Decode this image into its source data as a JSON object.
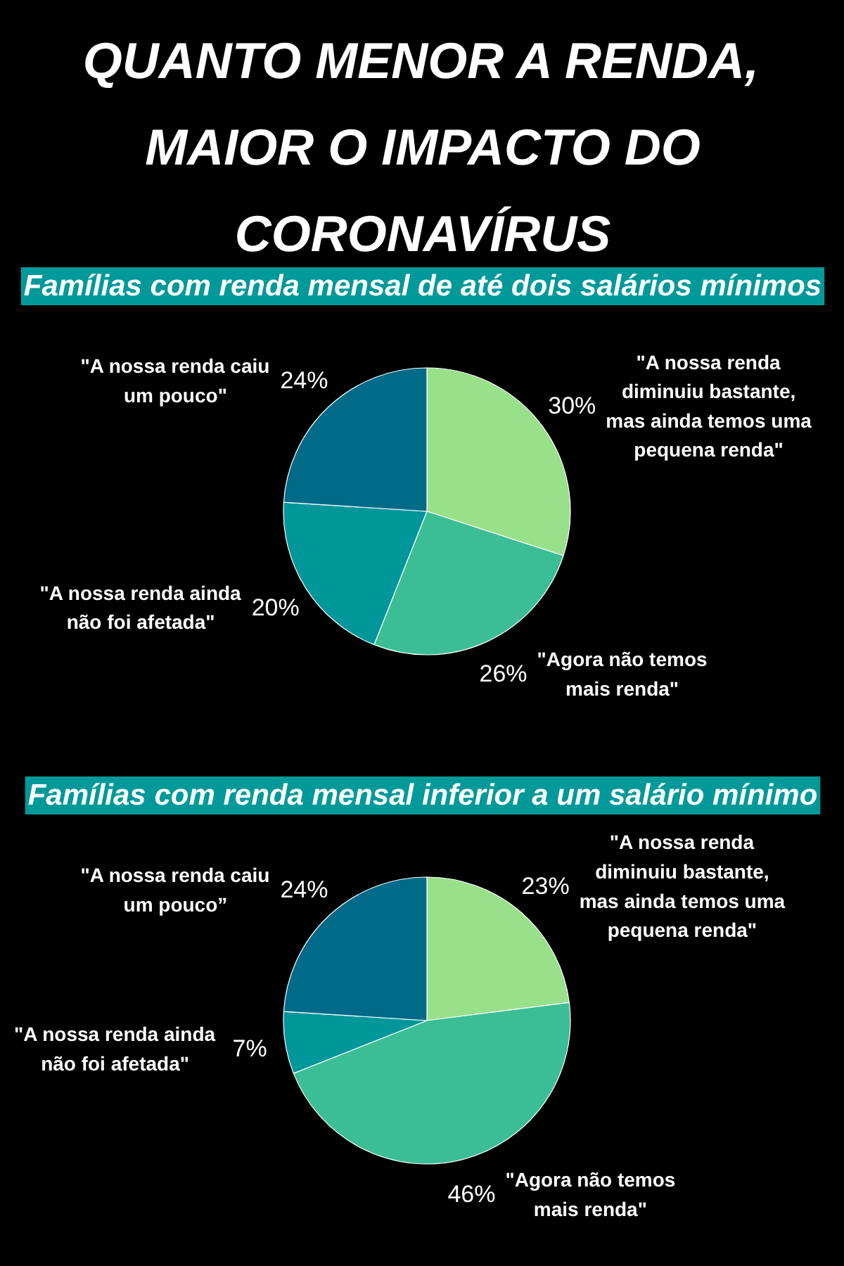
{
  "chart_data": [
    {
      "type": "pie",
      "title": "QUANTO MENOR A RENDA, MAIOR O IMPACTO DO CORONAVÍRUS",
      "subtitle": "Famílias com renda mensal de até dois salários mínimos",
      "categories": [
        "\"A nossa renda diminuiu bastante, mas ainda temos uma pequena renda\"",
        "\"Agora não temos mais renda\"",
        "\"A nossa renda ainda não foi afetada\"",
        "\"A nossa renda caiu um pouco\""
      ],
      "values": [
        30,
        26,
        20,
        24
      ],
      "colors": [
        "#98e08a",
        "#3bbe95",
        "#00979a",
        "#006a89"
      ],
      "value_labels": [
        "30%",
        "26%",
        "20%",
        "24%"
      ]
    },
    {
      "type": "pie",
      "subtitle": "Famílias com renda mensal inferior a um salário mínimo",
      "categories": [
        "\"A nossa renda diminuiu bastante, mas ainda temos uma pequena renda\"",
        "\"Agora não temos mais renda\"",
        "\"A nossa renda ainda não foi afetada\"",
        "\"A nossa renda caiu um pouco”"
      ],
      "values": [
        23,
        46,
        7,
        24
      ],
      "colors": [
        "#98e08a",
        "#3bbe95",
        "#00979a",
        "#006a89"
      ],
      "value_labels": [
        "23%",
        "46%",
        "7%",
        "24%"
      ]
    }
  ]
}
